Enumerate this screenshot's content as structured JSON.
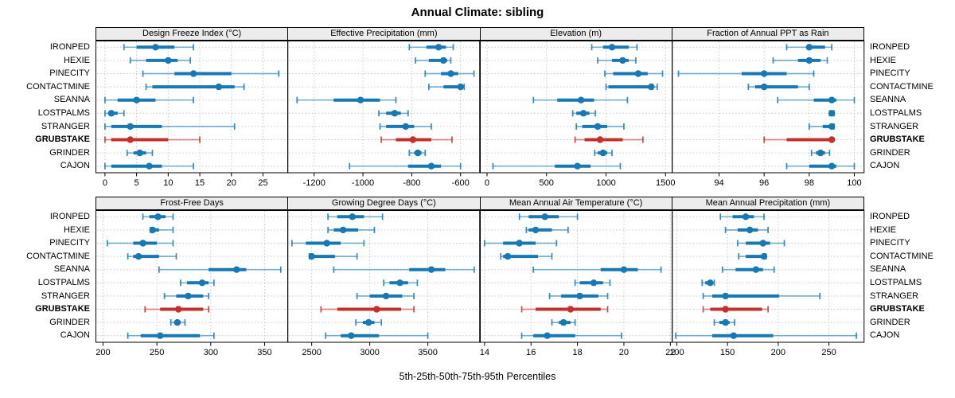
{
  "title": "Annual Climate: sibling",
  "footer": "5th-25th-50th-75th-95th Percentiles",
  "colors": {
    "normal": "#1878b4",
    "highlight": "#c4302b",
    "grid": "#c9c9c9",
    "strip_bg": "#ececec",
    "border": "#000000"
  },
  "sites": [
    {
      "name": "IRONPED",
      "highlight": false
    },
    {
      "name": "HEXIE",
      "highlight": false
    },
    {
      "name": "PINECITY",
      "highlight": false
    },
    {
      "name": "CONTACTMINE",
      "highlight": false
    },
    {
      "name": "SEANNA",
      "highlight": false
    },
    {
      "name": "LOSTPALMS",
      "highlight": false
    },
    {
      "name": "STRANGER",
      "highlight": false
    },
    {
      "name": "GRUBSTAKE",
      "highlight": true
    },
    {
      "name": "GRINDER",
      "highlight": false
    },
    {
      "name": "CAJON",
      "highlight": false
    }
  ],
  "chart_data": [
    {
      "type": "scatter",
      "subtype": "percentile-dotplot",
      "title": "Design Freeze Index (°C)",
      "xlim": [
        -1.5,
        29
      ],
      "xticks": [
        0,
        5,
        10,
        15,
        20,
        25
      ],
      "percentiles": [
        "5th",
        "25th",
        "50th",
        "75th",
        "95th"
      ],
      "series": [
        {
          "name": "IRONPED",
          "values": [
            3,
            5,
            8,
            11,
            14
          ]
        },
        {
          "name": "HEXIE",
          "values": [
            4,
            6.5,
            10,
            11.5,
            13.5
          ]
        },
        {
          "name": "PINECITY",
          "values": [
            6,
            11,
            14,
            20,
            27.5
          ]
        },
        {
          "name": "CONTACTMINE",
          "values": [
            6.5,
            7.5,
            18,
            20.5,
            22
          ]
        },
        {
          "name": "SEANNA",
          "values": [
            0,
            2,
            5,
            8,
            14
          ]
        },
        {
          "name": "LOSTPALMS",
          "values": [
            0,
            0.5,
            1,
            2,
            3
          ]
        },
        {
          "name": "STRANGER",
          "values": [
            0,
            1,
            4,
            9,
            20.5
          ]
        },
        {
          "name": "GRUBSTAKE",
          "values": [
            0,
            1,
            4,
            10,
            15
          ]
        },
        {
          "name": "GRINDER",
          "values": [
            3.5,
            4.5,
            5.5,
            6.5,
            7.5
          ]
        },
        {
          "name": "CAJON",
          "values": [
            0,
            1,
            7,
            9,
            14
          ]
        }
      ]
    },
    {
      "type": "scatter",
      "subtype": "percentile-dotplot",
      "title": "Effective Precipitation (mm)",
      "xlim": [
        -1310,
        -520
      ],
      "xticks": [
        -1200,
        -1000,
        -800,
        -600
      ],
      "percentiles": [
        "5th",
        "25th",
        "50th",
        "75th",
        "95th"
      ],
      "series": [
        {
          "name": "IRONPED",
          "values": [
            -810,
            -740,
            -690,
            -660,
            -630
          ]
        },
        {
          "name": "HEXIE",
          "values": [
            -785,
            -730,
            -670,
            -655,
            -640
          ]
        },
        {
          "name": "PINECITY",
          "values": [
            -745,
            -680,
            -640,
            -610,
            -545
          ]
        },
        {
          "name": "CONTACTMINE",
          "values": [
            -730,
            -670,
            -600,
            -592,
            -585
          ]
        },
        {
          "name": "SEANNA",
          "values": [
            -1270,
            -1120,
            -1010,
            -930,
            -865
          ]
        },
        {
          "name": "LOSTPALMS",
          "values": [
            -935,
            -905,
            -870,
            -845,
            -815
          ]
        },
        {
          "name": "STRANGER",
          "values": [
            -930,
            -905,
            -825,
            -790,
            -720
          ]
        },
        {
          "name": "GRUBSTAKE",
          "values": [
            -925,
            -865,
            -795,
            -720,
            -635
          ]
        },
        {
          "name": "GRINDER",
          "values": [
            -810,
            -790,
            -775,
            -760,
            -745
          ]
        },
        {
          "name": "CAJON",
          "values": [
            -1055,
            -815,
            -720,
            -680,
            -600
          ]
        }
      ]
    },
    {
      "type": "scatter",
      "subtype": "percentile-dotplot",
      "title": "Elevation (m)",
      "xlim": [
        -60,
        1560
      ],
      "xticks": [
        0,
        500,
        1000,
        1500
      ],
      "percentiles": [
        "5th",
        "25th",
        "50th",
        "75th",
        "95th"
      ],
      "series": [
        {
          "name": "IRONPED",
          "values": [
            880,
            975,
            1050,
            1190,
            1260
          ]
        },
        {
          "name": "HEXIE",
          "values": [
            930,
            1050,
            1140,
            1190,
            1250
          ]
        },
        {
          "name": "PINECITY",
          "values": [
            990,
            1060,
            1270,
            1350,
            1475
          ]
        },
        {
          "name": "CONTACTMINE",
          "values": [
            1000,
            1020,
            1380,
            1400,
            1430
          ]
        },
        {
          "name": "SEANNA",
          "values": [
            390,
            590,
            790,
            900,
            1180
          ]
        },
        {
          "name": "LOSTPALMS",
          "values": [
            720,
            750,
            810,
            860,
            910
          ]
        },
        {
          "name": "STRANGER",
          "values": [
            750,
            800,
            930,
            1010,
            1150
          ]
        },
        {
          "name": "GRUBSTAKE",
          "values": [
            740,
            820,
            950,
            1140,
            1310
          ]
        },
        {
          "name": "GRINDER",
          "values": [
            905,
            930,
            975,
            1010,
            1050
          ]
        },
        {
          "name": "CAJON",
          "values": [
            50,
            570,
            760,
            870,
            1120
          ]
        }
      ]
    },
    {
      "type": "scatter",
      "subtype": "percentile-dotplot",
      "title": "Fraction of Annual PPT as Rain",
      "xlim": [
        91.9,
        100.45
      ],
      "xticks": [
        94,
        96,
        98,
        100
      ],
      "percentiles": [
        "5th",
        "25th",
        "50th",
        "75th",
        "95th"
      ],
      "series": [
        {
          "name": "IRONPED",
          "values": [
            97,
            97.9,
            98,
            98.7,
            99
          ]
        },
        {
          "name": "HEXIE",
          "values": [
            96.4,
            97.5,
            98,
            98.5,
            98.8
          ]
        },
        {
          "name": "PINECITY",
          "values": [
            92.2,
            95,
            96,
            97,
            98.2
          ]
        },
        {
          "name": "CONTACTMINE",
          "values": [
            95.3,
            95.6,
            96,
            97.5,
            98
          ]
        },
        {
          "name": "SEANNA",
          "values": [
            96.6,
            98.2,
            99,
            99.2,
            100
          ]
        },
        {
          "name": "LOSTPALMS",
          "values": [
            98.9,
            98.95,
            99,
            99.05,
            99.1
          ]
        },
        {
          "name": "STRANGER",
          "values": [
            98,
            98.6,
            99,
            99.05,
            99.1
          ]
        },
        {
          "name": "GRUBSTAKE",
          "values": [
            96,
            97,
            99,
            99,
            99
          ]
        },
        {
          "name": "GRINDER",
          "values": [
            98.1,
            98.3,
            98.5,
            98.7,
            98.9
          ]
        },
        {
          "name": "CAJON",
          "values": [
            97,
            98,
            99,
            99.2,
            100
          ]
        }
      ]
    },
    {
      "type": "scatter",
      "subtype": "percentile-dotplot",
      "title": "Frost-Free Days",
      "xlim": [
        193,
        372
      ],
      "xticks": [
        200,
        250,
        300,
        350
      ],
      "percentiles": [
        "5th",
        "25th",
        "50th",
        "75th",
        "95th"
      ],
      "series": [
        {
          "name": "IRONPED",
          "values": [
            237,
            243,
            251,
            258,
            265
          ]
        },
        {
          "name": "HEXIE",
          "values": [
            244,
            245,
            246,
            252,
            265
          ]
        },
        {
          "name": "PINECITY",
          "values": [
            204,
            228,
            237,
            250,
            265
          ]
        },
        {
          "name": "CONTACTMINE",
          "values": [
            223,
            228,
            233,
            252,
            268
          ]
        },
        {
          "name": "SEANNA",
          "values": [
            252,
            298,
            324,
            333,
            365
          ]
        },
        {
          "name": "LOSTPALMS",
          "values": [
            272,
            278,
            292,
            298,
            303
          ]
        },
        {
          "name": "STRANGER",
          "values": [
            257,
            268,
            279,
            293,
            298
          ]
        },
        {
          "name": "GRUBSTAKE",
          "values": [
            239,
            253,
            270,
            293,
            298
          ]
        },
        {
          "name": "GRINDER",
          "values": [
            263,
            266,
            269,
            272,
            276
          ]
        },
        {
          "name": "CAJON",
          "values": [
            223,
            235,
            253,
            290,
            303
          ]
        }
      ]
    },
    {
      "type": "scatter",
      "subtype": "percentile-dotplot",
      "title": "Growing Degree Days (°C)",
      "xlim": [
        2290,
        3950
      ],
      "xticks": [
        2500,
        3000,
        3500
      ],
      "percentiles": [
        "5th",
        "25th",
        "50th",
        "75th",
        "95th"
      ],
      "series": [
        {
          "name": "IRONPED",
          "values": [
            2640,
            2720,
            2850,
            2950,
            3110
          ]
        },
        {
          "name": "HEXIE",
          "values": [
            2640,
            2690,
            2770,
            2900,
            3040
          ]
        },
        {
          "name": "PINECITY",
          "values": [
            2330,
            2450,
            2630,
            2750,
            2950
          ]
        },
        {
          "name": "CONTACTMINE",
          "values": [
            2480,
            2490,
            2500,
            2700,
            2890
          ]
        },
        {
          "name": "SEANNA",
          "values": [
            2690,
            3340,
            3530,
            3650,
            3900
          ]
        },
        {
          "name": "LOSTPALMS",
          "values": [
            3120,
            3170,
            3260,
            3330,
            3410
          ]
        },
        {
          "name": "STRANGER",
          "values": [
            2890,
            3000,
            3140,
            3280,
            3380
          ]
        },
        {
          "name": "GRUBSTAKE",
          "values": [
            2580,
            2720,
            3060,
            3270,
            3380
          ]
        },
        {
          "name": "GRINDER",
          "values": [
            2880,
            2940,
            2990,
            3040,
            3100
          ]
        },
        {
          "name": "CAJON",
          "values": [
            2620,
            2750,
            2840,
            3080,
            3500
          ]
        }
      ]
    },
    {
      "type": "scatter",
      "subtype": "percentile-dotplot",
      "title": "Mean Annual Air Temperature (°C)",
      "xlim": [
        13.8,
        22.1
      ],
      "xticks": [
        14,
        16,
        18,
        20,
        22
      ],
      "percentiles": [
        "5th",
        "25th",
        "50th",
        "75th",
        "95th"
      ],
      "series": [
        {
          "name": "IRONPED",
          "values": [
            15.5,
            15.9,
            16.6,
            17.2,
            18.0
          ]
        },
        {
          "name": "HEXIE",
          "values": [
            15.8,
            15.9,
            16.2,
            16.9,
            17.6
          ]
        },
        {
          "name": "PINECITY",
          "values": [
            14.0,
            14.8,
            15.5,
            16.2,
            17.1
          ]
        },
        {
          "name": "CONTACTMINE",
          "values": [
            14.7,
            14.8,
            15.0,
            16.3,
            16.9
          ]
        },
        {
          "name": "SEANNA",
          "values": [
            16.1,
            19.0,
            20.0,
            20.6,
            21.6
          ]
        },
        {
          "name": "LOSTPALMS",
          "values": [
            17.9,
            18.1,
            18.7,
            19.1,
            19.4
          ]
        },
        {
          "name": "STRANGER",
          "values": [
            16.8,
            17.3,
            18.1,
            18.9,
            19.3
          ]
        },
        {
          "name": "GRUBSTAKE",
          "values": [
            15.6,
            16.2,
            17.7,
            19.0,
            19.3
          ]
        },
        {
          "name": "GRINDER",
          "values": [
            16.9,
            17.2,
            17.4,
            17.7,
            17.9
          ]
        },
        {
          "name": "CAJON",
          "values": [
            15.6,
            16.1,
            16.7,
            17.9,
            19.9
          ]
        }
      ]
    },
    {
      "type": "scatter",
      "subtype": "percentile-dotplot",
      "title": "Mean Annual Precipitation (mm)",
      "xlim": [
        95,
        285
      ],
      "xticks": [
        100,
        150,
        200,
        250
      ],
      "percentiles": [
        "5th",
        "25th",
        "50th",
        "75th",
        "95th"
      ],
      "series": [
        {
          "name": "IRONPED",
          "values": [
            143,
            155,
            168,
            176,
            186
          ]
        },
        {
          "name": "HEXIE",
          "values": [
            148,
            160,
            172,
            180,
            190
          ]
        },
        {
          "name": "PINECITY",
          "values": [
            160,
            168,
            185,
            192,
            206
          ]
        },
        {
          "name": "CONTACTMINE",
          "values": [
            161,
            168,
            186,
            187,
            188
          ]
        },
        {
          "name": "SEANNA",
          "values": [
            145,
            158,
            178,
            185,
            196
          ]
        },
        {
          "name": "LOSTPALMS",
          "values": [
            125,
            128,
            133,
            135,
            137
          ]
        },
        {
          "name": "STRANGER",
          "values": [
            126,
            135,
            148,
            201,
            241
          ]
        },
        {
          "name": "GRUBSTAKE",
          "values": [
            126,
            133,
            148,
            184,
            190
          ]
        },
        {
          "name": "GRINDER",
          "values": [
            137,
            142,
            148,
            152,
            157
          ]
        },
        {
          "name": "CAJON",
          "values": [
            99,
            135,
            156,
            195,
            277
          ]
        }
      ]
    }
  ]
}
